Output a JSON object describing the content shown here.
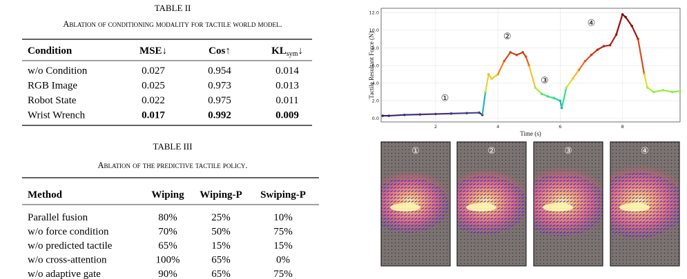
{
  "table_2": {
    "caption": "TABLE II",
    "title": "Ablation of conditioning modality for tactile world model.",
    "headers": [
      "Condition",
      "MSE↓",
      "Cos↑",
      "KL",
      "sym",
      "↓"
    ],
    "rows": [
      [
        "w/o Condition",
        "0.027",
        "0.954",
        "0.014"
      ],
      [
        "RGB Image",
        "0.025",
        "0.973",
        "0.013"
      ],
      [
        "Robot State",
        "0.022",
        "0.975",
        "0.011"
      ],
      [
        "Wrist Wrench",
        "0.017",
        "0.992",
        "0.009"
      ]
    ],
    "bold_row": 3
  },
  "table_3": {
    "caption": "TABLE III",
    "title": "Ablation of the predictive tactile policy.",
    "headers": [
      "Method",
      "Wiping",
      "Wiping-P",
      "Swiping-P"
    ],
    "rows": [
      [
        "Parallel fusion",
        "80%",
        "25%",
        "10%"
      ],
      [
        "w/o force condition",
        "70%",
        "50%",
        "75%"
      ],
      [
        "w/o predicted tactile",
        "65%",
        "15%",
        "15%"
      ],
      [
        "w/o cross-attention",
        "100%",
        "65%",
        "0%"
      ],
      [
        "w/o adaptive gate",
        "90%",
        "65%",
        "75%"
      ]
    ]
  },
  "chart_data": {
    "type": "line",
    "x_label": "Time (s)",
    "y_label": "Tactile Resultant Force (N)",
    "xlim": [
      0.25,
      9.85
    ],
    "ylim": [
      -0.4,
      12.5
    ],
    "xticks": [
      2,
      4,
      6,
      8
    ],
    "yticks": [
      {
        "value": 0,
        "label": "0.0"
      },
      {
        "value": 2,
        "label": "2.0"
      },
      {
        "value": 4,
        "label": "4.0"
      },
      {
        "value": 6,
        "label": "6.0"
      },
      {
        "value": 8,
        "label": "8.0"
      },
      {
        "value": 10,
        "label": "10.0"
      },
      {
        "value": 12,
        "label": "12.0"
      }
    ],
    "grid": true,
    "x": [
      0.3,
      0.5,
      1.0,
      1.5,
      2.0,
      2.5,
      3.0,
      3.4,
      3.5,
      3.6,
      3.7,
      3.8,
      4.0,
      4.2,
      4.4,
      4.6,
      4.8,
      4.9,
      5.0,
      5.2,
      5.4,
      5.6,
      5.8,
      6.0,
      6.05,
      6.2,
      6.4,
      6.6,
      6.8,
      7.0,
      7.2,
      7.4,
      7.6,
      7.8,
      8.0,
      8.1,
      8.3,
      8.5,
      8.7,
      8.8,
      9.0,
      9.3,
      9.6,
      9.85
    ],
    "values": [
      0.3,
      0.3,
      0.4,
      0.45,
      0.5,
      0.55,
      0.6,
      0.65,
      0.4,
      3.0,
      5.0,
      4.5,
      5.0,
      6.5,
      7.5,
      7.2,
      7.5,
      7.0,
      6.0,
      3.5,
      2.8,
      2.5,
      2.3,
      2.0,
      1.2,
      3.5,
      4.5,
      5.5,
      6.5,
      7.2,
      7.8,
      8.2,
      8.3,
      9.5,
      11.8,
      11.5,
      10.5,
      9.0,
      5.0,
      3.5,
      3.0,
      3.2,
      3.0,
      3.1
    ],
    "annotations": [
      {
        "text": "①",
        "x": 2.3,
        "y": 2.3
      },
      {
        "text": "②",
        "x": 4.3,
        "y": 9.3
      },
      {
        "text": "③",
        "x": 5.5,
        "y": 4.3
      },
      {
        "text": "④",
        "x": 7.0,
        "y": 10.8
      }
    ]
  },
  "images": {
    "panels": [
      {
        "label": "①"
      },
      {
        "label": "②"
      },
      {
        "label": "③"
      },
      {
        "label": "④"
      }
    ]
  }
}
